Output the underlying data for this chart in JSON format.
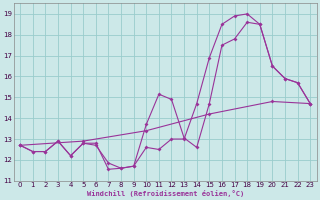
{
  "xlabel": "Windchill (Refroidissement éolien,°C)",
  "bg_color": "#cce8e8",
  "grid_color": "#99cccc",
  "line_color": "#993399",
  "xlim": [
    -0.5,
    23.5
  ],
  "ylim": [
    11,
    19.5
  ],
  "yticks": [
    11,
    12,
    13,
    14,
    15,
    16,
    17,
    18,
    19
  ],
  "xticks": [
    0,
    1,
    2,
    3,
    4,
    5,
    6,
    7,
    8,
    9,
    10,
    11,
    12,
    13,
    14,
    15,
    16,
    17,
    18,
    19,
    20,
    21,
    22,
    23
  ],
  "line1_x": [
    0,
    1,
    2,
    3,
    4,
    5,
    6,
    7,
    8,
    9,
    10,
    11,
    12,
    13,
    14,
    15,
    16,
    17,
    18,
    19,
    20,
    21,
    22,
    23
  ],
  "line1_y": [
    12.7,
    12.4,
    12.4,
    12.9,
    12.2,
    12.8,
    12.8,
    11.55,
    11.6,
    11.7,
    13.7,
    15.15,
    14.9,
    13.05,
    12.6,
    14.7,
    17.5,
    17.8,
    18.6,
    18.5,
    16.5,
    15.9,
    15.7,
    14.7
  ],
  "line2_x": [
    0,
    1,
    2,
    3,
    4,
    5,
    6,
    7,
    8,
    9,
    10,
    11,
    12,
    13,
    14,
    15,
    16,
    17,
    18,
    19,
    20,
    21,
    22,
    23
  ],
  "line2_y": [
    12.7,
    12.4,
    12.4,
    12.9,
    12.2,
    12.8,
    12.7,
    11.85,
    11.6,
    11.7,
    12.6,
    12.5,
    13.0,
    13.0,
    14.7,
    16.9,
    18.5,
    18.9,
    19.0,
    18.5,
    16.5,
    15.9,
    15.7,
    14.7
  ],
  "line3_x": [
    0,
    5,
    10,
    15,
    20,
    23
  ],
  "line3_y": [
    12.7,
    12.9,
    13.4,
    14.2,
    14.8,
    14.7
  ]
}
